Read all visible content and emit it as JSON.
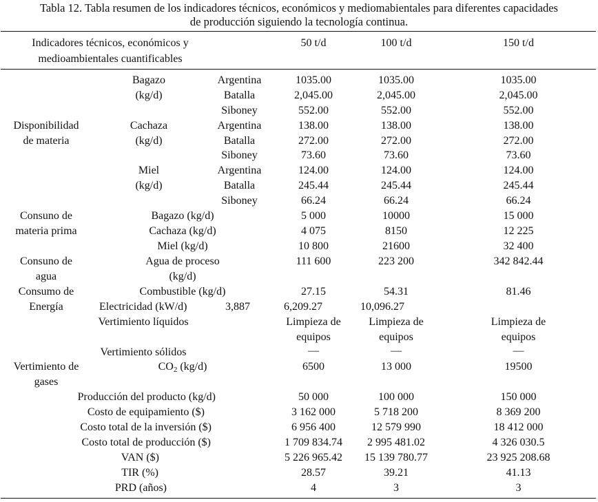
{
  "caption": {
    "line1": "Tabla 12. Tabla resumen de los indicadores técnicos, económicos y mediomabientales para diferentes capacidades",
    "line2": "de producción siguiendo la tecnología continua."
  },
  "header": {
    "indicators_line1": "Indicadores técnicos, económicos y",
    "indicators_line2": "medioambientales cuantificables",
    "col1": "50 t/d",
    "col2": "100 t/d",
    "col3": "150 t/d"
  },
  "availability": {
    "group_line1": "Disponibilidad",
    "group_line2": "de materia",
    "bagazo": {
      "name": "Bagazo",
      "unit": "(kg/d)"
    },
    "cachaza": {
      "name": "Cachaza",
      "unit": "(kg/d)"
    },
    "miel": {
      "name": "Miel",
      "unit": "(kg/d)"
    },
    "rows": [
      {
        "origin": "Argentina",
        "v1": "1035.00",
        "v2": "1035.00",
        "v3": "1035.00"
      },
      {
        "origin": "Batalla",
        "v1": "2,045.00",
        "v2": "2,045.00",
        "v3": "2,045.00"
      },
      {
        "origin": "Siboney",
        "v1": "552.00",
        "v2": "552.00",
        "v3": "552.00"
      },
      {
        "origin": "Argentina",
        "v1": "138.00",
        "v2": "138.00",
        "v3": "138.00"
      },
      {
        "origin": "Batalla",
        "v1": "272.00",
        "v2": "272.00",
        "v3": "272.00"
      },
      {
        "origin": "Siboney",
        "v1": "73.60",
        "v2": "73.60",
        "v3": "73.60"
      },
      {
        "origin": "Argentina",
        "v1": "124.00",
        "v2": "124.00",
        "v3": "124.00"
      },
      {
        "origin": "Batalla",
        "v1": "245.44",
        "v2": "245.44",
        "v3": "245.44"
      },
      {
        "origin": "Siboney",
        "v1": "66.24",
        "v2": "66.24",
        "v3": "66.24"
      }
    ]
  },
  "raw_material": {
    "group_line1": "Consuno de",
    "group_line2": "materia prima",
    "rows": [
      {
        "label": "Bagazo (kg/d)",
        "v1": "5 000",
        "v2": "10000",
        "v3": "15 000"
      },
      {
        "label": "Cachaza (kg/d)",
        "v1": "4 075",
        "v2": "8150",
        "v3": "12 225"
      },
      {
        "label": "Miel (kg/d)",
        "v1": "10 800",
        "v2": "21600",
        "v3": "32 400"
      }
    ]
  },
  "water": {
    "group_line1": "Consuno de",
    "group_line2": "agua",
    "label_line1": "Agua de proceso",
    "label_line2": "(kg/d)",
    "v1": "111 600",
    "v2": "223 200",
    "v3": "342 842.44"
  },
  "energy": {
    "group_line1": "Consumo de",
    "group_line2": "Energía",
    "fuel": {
      "label": "Combustible (kg/d)",
      "v1": "27.15",
      "v2": "54.31",
      "v3": "81.46"
    },
    "electricity": {
      "label": "Electricidad (kW/d)",
      "v0": "3,887",
      "v1": "6,209.27",
      "v2": "10,096.27"
    }
  },
  "liquid": {
    "label": "Vertimiento líquidos",
    "line1": "Limpieza de",
    "line2": "equipos"
  },
  "solid": {
    "label": "Vertimiento sólidos",
    "dash": "—"
  },
  "gases": {
    "group_line1": "Vertimiento de",
    "group_line2": "gases",
    "label_main": "CO",
    "label_sub": "2",
    "label_unit": " (kg/d)",
    "v1": "6500",
    "v2": "13 000",
    "v3": "19500"
  },
  "economics": [
    {
      "label": "Producción del producto (kg/d)",
      "v1": "50 000",
      "v2": "100 000",
      "v3": "150 000"
    },
    {
      "label": "Costo de equipamiento ($)",
      "v1": "3 162 000",
      "v2": "5 718 200",
      "v3": "8 369 200"
    },
    {
      "label": "Costo total de la inversión ($)",
      "v1": "6 956 400",
      "v2": "12 579 990",
      "v3": "18 412 000"
    },
    {
      "label": "Costo total de producción ($)",
      "v1": "1 709 834.74",
      "v2": "2 995 481.02",
      "v3": "4 326 030.5"
    },
    {
      "label": "VAN ($)",
      "v1": "5 226 965.42",
      "v2": "15 139 780.77",
      "v3": "23 925 208.68"
    },
    {
      "label": "TIR (%)",
      "v1": "28.57",
      "v2": "39.21",
      "v3": "41.13"
    },
    {
      "label": "PRD (años)",
      "v1": "4",
      "v2": "3",
      "v3": "3"
    }
  ]
}
